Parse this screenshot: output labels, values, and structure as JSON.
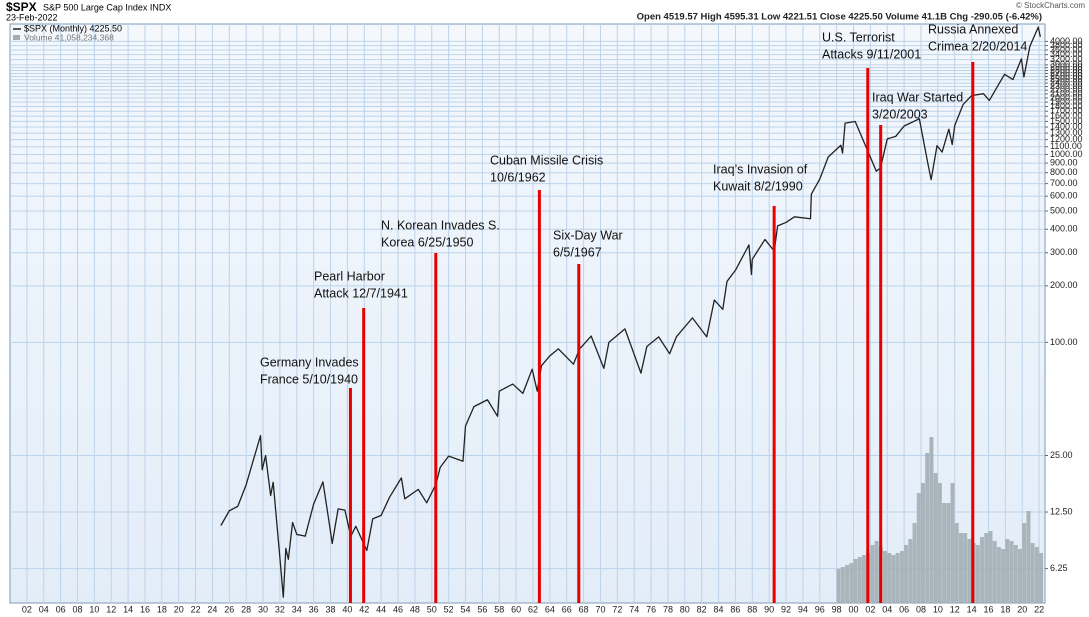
{
  "header": {
    "symbol": "$SPX",
    "name": "S&P 500 Large Cap Index INDX",
    "date": "23-Feb-2022",
    "quote": "Open 4519.57  High 4595.31  Low 4221.51  Close 4225.50  Volume 41.1B  Chg -290.05 (-6.42%)",
    "credit": "© StockCharts.com",
    "legend_price": "$SPX (Monthly) 4225.50",
    "legend_volume": "Volume 41,058,234,368"
  },
  "chart_data": {
    "type": "line",
    "log_scale": true,
    "grid": true,
    "xlim": [
      1900,
      2022.7
    ],
    "ylim": [
      4.1,
      4950
    ],
    "xticks": [
      {
        "value": 1902,
        "label": "02"
      },
      {
        "value": 1904,
        "label": "04"
      },
      {
        "value": 1906,
        "label": "06"
      },
      {
        "value": 1908,
        "label": "08"
      },
      {
        "value": 1910,
        "label": "10"
      },
      {
        "value": 1912,
        "label": "12"
      },
      {
        "value": 1914,
        "label": "14"
      },
      {
        "value": 1916,
        "label": "16"
      },
      {
        "value": 1918,
        "label": "18"
      },
      {
        "value": 1920,
        "label": "20"
      },
      {
        "value": 1922,
        "label": "22"
      },
      {
        "value": 1924,
        "label": "24"
      },
      {
        "value": 1926,
        "label": "26"
      },
      {
        "value": 1928,
        "label": "28"
      },
      {
        "value": 1930,
        "label": "30"
      },
      {
        "value": 1932,
        "label": "32"
      },
      {
        "value": 1934,
        "label": "34"
      },
      {
        "value": 1936,
        "label": "36"
      },
      {
        "value": 1938,
        "label": "38"
      },
      {
        "value": 1940,
        "label": "40"
      },
      {
        "value": 1942,
        "label": "42"
      },
      {
        "value": 1944,
        "label": "44"
      },
      {
        "value": 1946,
        "label": "46"
      },
      {
        "value": 1948,
        "label": "48"
      },
      {
        "value": 1950,
        "label": "50"
      },
      {
        "value": 1952,
        "label": "52"
      },
      {
        "value": 1954,
        "label": "54"
      },
      {
        "value": 1956,
        "label": "56"
      },
      {
        "value": 1958,
        "label": "58"
      },
      {
        "value": 1960,
        "label": "60"
      },
      {
        "value": 1962,
        "label": "62"
      },
      {
        "value": 1964,
        "label": "64"
      },
      {
        "value": 1966,
        "label": "66"
      },
      {
        "value": 1968,
        "label": "68"
      },
      {
        "value": 1970,
        "label": "70"
      },
      {
        "value": 1972,
        "label": "72"
      },
      {
        "value": 1974,
        "label": "74"
      },
      {
        "value": 1976,
        "label": "76"
      },
      {
        "value": 1978,
        "label": "78"
      },
      {
        "value": 1980,
        "label": "80"
      },
      {
        "value": 1982,
        "label": "82"
      },
      {
        "value": 1984,
        "label": "84"
      },
      {
        "value": 1986,
        "label": "86"
      },
      {
        "value": 1988,
        "label": "88"
      },
      {
        "value": 1990,
        "label": "90"
      },
      {
        "value": 1992,
        "label": "92"
      },
      {
        "value": 1994,
        "label": "94"
      },
      {
        "value": 1996,
        "label": "96"
      },
      {
        "value": 1998,
        "label": "98"
      },
      {
        "value": 2000,
        "label": "00"
      },
      {
        "value": 2002,
        "label": "02"
      },
      {
        "value": 2004,
        "label": "04"
      },
      {
        "value": 2006,
        "label": "06"
      },
      {
        "value": 2008,
        "label": "08"
      },
      {
        "value": 2010,
        "label": "10"
      },
      {
        "value": 2012,
        "label": "12"
      },
      {
        "value": 2014,
        "label": "14"
      },
      {
        "value": 2016,
        "label": "16"
      },
      {
        "value": 2018,
        "label": "18"
      },
      {
        "value": 2020,
        "label": "20"
      },
      {
        "value": 2022,
        "label": "22"
      }
    ],
    "yticks": [
      6.25,
      {
        "value": 12.5,
        "label": "12.50"
      },
      {
        "value": 25,
        "label": "25.00"
      },
      {
        "value": 100,
        "label": "100.00"
      },
      {
        "value": 200,
        "label": "200.00"
      },
      {
        "value": 300,
        "label": "300.00"
      },
      {
        "value": 400,
        "label": "400.00"
      },
      {
        "value": 500,
        "label": "500.00"
      },
      {
        "value": 600,
        "label": "600.00"
      },
      {
        "value": 700,
        "label": "700.00"
      },
      {
        "value": 800,
        "label": "800.00"
      },
      {
        "value": 900,
        "label": "900.00"
      },
      {
        "value": 1000,
        "label": "1000.00"
      },
      {
        "value": 1100,
        "label": "1100.00"
      },
      {
        "value": 1200,
        "label": "1200.00"
      },
      {
        "value": 1300,
        "label": "1300.00"
      },
      {
        "value": 1400,
        "label": "1400.00"
      },
      {
        "value": 1500,
        "label": "1500.00"
      },
      {
        "value": 1600,
        "label": "1600.00"
      },
      {
        "value": 1700,
        "label": "1700.00"
      },
      {
        "value": 1800,
        "label": "1800.00"
      },
      {
        "value": 1900,
        "label": "1900.00"
      },
      {
        "value": 2000,
        "label": "2000.00"
      },
      {
        "value": 2100,
        "label": "2100.00"
      },
      {
        "value": 2200,
        "label": "2200.00"
      },
      {
        "value": 2300,
        "label": "2300.00"
      },
      {
        "value": 2400,
        "label": "2400.00"
      },
      {
        "value": 2500,
        "label": "2500.00"
      },
      {
        "value": 2600,
        "label": "2600.00"
      },
      {
        "value": 2700,
        "label": "2700.00"
      },
      {
        "value": 2800,
        "label": "2800.00"
      },
      {
        "value": 2900,
        "label": "2900.00"
      },
      {
        "value": 3000,
        "label": "3000.00"
      },
      {
        "value": 3200,
        "label": "3200.00"
      },
      {
        "value": 3400,
        "label": "3400.00"
      },
      {
        "value": 3600,
        "label": "3600.00"
      },
      {
        "value": 3800,
        "label": "3800.00"
      },
      {
        "value": 4000,
        "label": "4000.00"
      }
    ],
    "series": [
      {
        "name": "$SPX (Monthly)",
        "color": "#222222",
        "x": [
          1925.0,
          1926.0,
          1927.0,
          1928.0,
          1929.7,
          1929.9,
          1930.3,
          1930.9,
          1931.2,
          1931.9,
          1932.4,
          1932.7,
          1933.0,
          1933.5,
          1934.0,
          1935.0,
          1936.0,
          1937.1,
          1937.9,
          1938.2,
          1938.9,
          1939.7,
          1940.4,
          1941.0,
          1942.3,
          1943.0,
          1944.0,
          1945.0,
          1946.4,
          1946.8,
          1948.4,
          1949.4,
          1950.5,
          1951.0,
          1952.0,
          1953.7,
          1954.0,
          1955.0,
          1956.6,
          1957.8,
          1958.0,
          1959.6,
          1960.8,
          1961.9,
          1962.5,
          1963.0,
          1964.0,
          1965.0,
          1966.8,
          1967.5,
          1968.9,
          1970.4,
          1971.0,
          1972.9,
          1974.8,
          1975.5,
          1976.9,
          1978.2,
          1979.0,
          1980.9,
          1982.6,
          1983.5,
          1984.5,
          1985.0,
          1986.0,
          1987.6,
          1987.9,
          1988.0,
          1989.5,
          1990.6,
          1991.0,
          1992.0,
          1993.0,
          1994.9,
          1995.0,
          1996.0,
          1997.0,
          1998.5,
          1998.7,
          1999.0,
          2000.2,
          2001.7,
          2002.7,
          2003.2,
          2004.0,
          2005.0,
          2006.0,
          2007.8,
          2008.8,
          2009.2,
          2009.9,
          2010.5,
          2011.3,
          2011.7,
          2012.0,
          2013.0,
          2014.0,
          2015.4,
          2016.1,
          2016.9,
          2017.9,
          2018.9,
          2019.9,
          2020.2,
          2020.9,
          2021.9,
          2022.15
        ],
        "values": [
          10.6,
          12.7,
          13.4,
          17.5,
          31.9,
          21,
          25,
          15.3,
          18,
          8,
          4.4,
          8,
          7,
          11,
          9.5,
          9.3,
          13.8,
          18.1,
          10.5,
          8.5,
          13,
          12.8,
          9.3,
          10.5,
          7.8,
          11.5,
          12,
          15,
          19,
          14.7,
          16.5,
          14,
          17.6,
          21.6,
          24.8,
          23.3,
          35.9,
          45.5,
          49.5,
          40.4,
          55,
          60,
          53.5,
          72,
          55,
          75,
          84.8,
          92.4,
          76.5,
          92,
          108,
          72.7,
          100,
          118,
          68.6,
          95,
          107,
          87,
          107,
          135,
          107,
          168,
          150,
          211,
          242,
          330,
          230,
          277,
          353,
          306,
          417,
          435,
          466,
          455,
          615,
          740,
          970,
          1120,
          1017,
          1469,
          1499,
          1040,
          815,
          848,
          1211,
          1248,
          1418,
          1549,
          903,
          735,
          1115,
          1030,
          1363,
          1131,
          1426,
          1848,
          2058,
          2107,
          1940,
          2238,
          2673,
          2506,
          3230,
          2584,
          3756,
          4766,
          4225.5
        ]
      }
    ],
    "volume": {
      "name": "Volume",
      "color": "#a3aeb4",
      "vlim": [
        0,
        100
      ],
      "x": [
        1998.0,
        1998.5,
        1999.0,
        1999.5,
        2000.0,
        2000.5,
        2001.0,
        2001.5,
        2002.0,
        2002.5,
        2003.0,
        2003.5,
        2004.0,
        2004.5,
        2005.0,
        2005.5,
        2006.0,
        2006.5,
        2007.0,
        2007.5,
        2008.0,
        2008.5,
        2009.0,
        2009.5,
        2010.0,
        2010.5,
        2011.0,
        2011.5,
        2012.0,
        2012.5,
        2013.0,
        2013.5,
        2014.0,
        2014.5,
        2015.0,
        2015.5,
        2016.0,
        2016.5,
        2017.0,
        2017.5,
        2018.0,
        2018.5,
        2019.0,
        2019.5,
        2020.0,
        2020.5,
        2021.0,
        2021.5,
        2022.0
      ],
      "values": [
        17,
        18,
        19,
        20,
        22,
        23,
        24,
        25,
        29,
        31,
        28,
        26,
        25,
        24,
        25,
        26,
        29,
        32,
        40,
        55,
        60,
        75,
        83,
        65,
        60,
        50,
        50,
        60,
        40,
        35,
        35,
        32,
        30,
        29,
        33,
        35,
        36,
        31,
        28,
        27,
        32,
        31,
        29,
        27,
        40,
        46,
        30,
        28,
        25
      ]
    },
    "events": [
      {
        "x": 1940.36,
        "lines": [
          "Germany Invades",
          "France 5/10/1940"
        ]
      },
      {
        "x": 1941.93,
        "lines": [
          "Pearl Harbor",
          "Attack 12/7/1941"
        ]
      },
      {
        "x": 1950.48,
        "lines": [
          "N. Korean Invades S.",
          "Korea 6/25/1950"
        ]
      },
      {
        "x": 1962.76,
        "lines": [
          "Cuban Missile Crisis",
          "10/6/1962"
        ]
      },
      {
        "x": 1967.43,
        "lines": [
          "Six-Day War",
          "6/5/1967"
        ]
      },
      {
        "x": 1990.59,
        "lines": [
          "Iraq’s Invasion of",
          "Kuwait 8/2/1990"
        ]
      },
      {
        "x": 2001.69,
        "lines": [
          "U.S. Terrorist",
          "Attacks 9/11/2001"
        ]
      },
      {
        "x": 2003.22,
        "lines": [
          "Iraq War Started",
          "3/20/2003"
        ]
      },
      {
        "x": 2014.14,
        "lines": [
          "Russia Annexed",
          "Crimea 2/20/2014"
        ]
      }
    ]
  }
}
